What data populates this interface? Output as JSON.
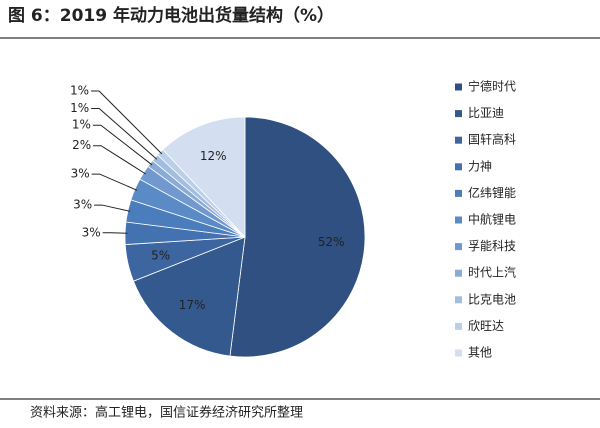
{
  "chart_data": {
    "type": "pie",
    "title": "图 6：2019 年动力电池出货量结构（%）",
    "categories": [
      "宁德时代",
      "比亚迪",
      "国轩高科",
      "力神",
      "亿纬锂能",
      "中航锂电",
      "孚能科技",
      "时代上汽",
      "比克电池",
      "欣旺达",
      "其他"
    ],
    "values": [
      52,
      17,
      5,
      3,
      3,
      3,
      2,
      1,
      1,
      1,
      12
    ],
    "value_labels": [
      "52%",
      "17%",
      "5%",
      "3%",
      "3%",
      "3%",
      "2%",
      "1%",
      "1%",
      "1%",
      "12%"
    ],
    "colors": [
      "#2f5080",
      "#34598e",
      "#3d66a0",
      "#4472b0",
      "#4b7dbd",
      "#5b8bc7",
      "#7199cf",
      "#8aabd6",
      "#a3bde0",
      "#bccfe8",
      "#d3dff0"
    ],
    "legend": "right",
    "source": "资料来源：高工锂电，国信证券经济研究所整理"
  }
}
